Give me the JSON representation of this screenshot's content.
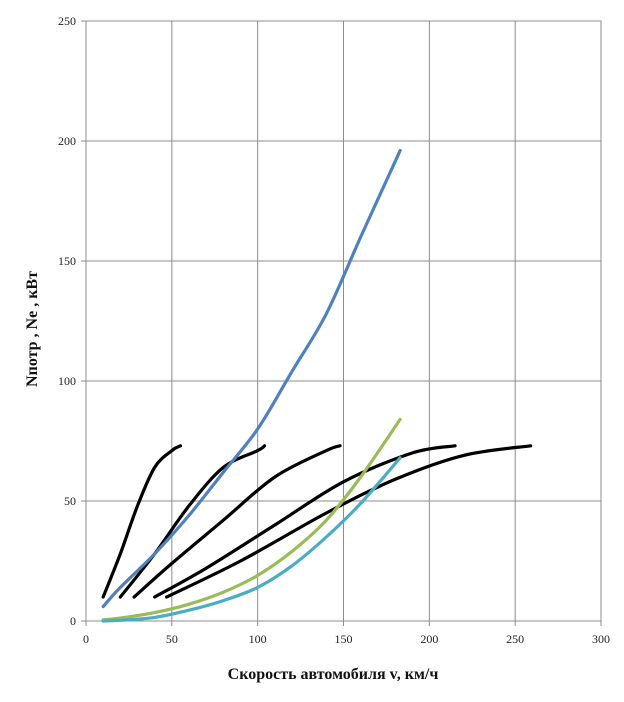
{
  "chart_data": {
    "type": "line",
    "title": "",
    "xlabel": "Скорость автомобиля v, км/ч",
    "ylabel": "Nпотр , Ne , кВт",
    "xlim": [
      0,
      300
    ],
    "ylim": [
      0,
      250
    ],
    "xticks": [
      0,
      50,
      100,
      150,
      200,
      250,
      300
    ],
    "yticks": [
      0,
      50,
      100,
      150,
      200,
      250
    ],
    "grid": true,
    "legend": "none",
    "series": [
      {
        "color": "#000000",
        "x": [
          10,
          20,
          30,
          40,
          50,
          55
        ],
        "y": [
          10,
          28,
          48,
          64,
          71,
          73
        ]
      },
      {
        "color": "#000000",
        "x": [
          20,
          40,
          60,
          80,
          100,
          104
        ],
        "y": [
          10,
          28,
          48,
          64,
          71,
          73
        ]
      },
      {
        "color": "#000000",
        "x": [
          28,
          50,
          80,
          110,
          140,
          148
        ],
        "y": [
          10,
          24,
          42,
          60,
          71,
          73
        ]
      },
      {
        "color": "#000000",
        "x": [
          40,
          70,
          110,
          150,
          190,
          215
        ],
        "y": [
          10,
          22,
          40,
          58,
          70,
          73
        ]
      },
      {
        "color": "#000000",
        "x": [
          47,
          90,
          140,
          180,
          220,
          259
        ],
        "y": [
          10,
          25,
          45,
          59,
          69,
          73
        ]
      },
      {
        "color": "#4F81BD",
        "x": [
          10,
          20,
          40,
          60,
          80,
          100,
          120,
          140,
          160,
          183
        ],
        "y": [
          6,
          14,
          28,
          44,
          62,
          80,
          104,
          128,
          160,
          196
        ]
      },
      {
        "color": "#9BBB59",
        "x": [
          10,
          20,
          40,
          60,
          80,
          100,
          120,
          140,
          160,
          183
        ],
        "y": [
          0.5,
          1.2,
          3.5,
          7,
          12,
          19,
          29,
          42,
          60,
          84
        ]
      },
      {
        "color": "#4BACC6",
        "x": [
          10,
          20,
          40,
          60,
          80,
          100,
          120,
          140,
          160,
          183
        ],
        "y": [
          0,
          0.3,
          1.5,
          4.5,
          8.5,
          14,
          23,
          35,
          49,
          68
        ]
      }
    ]
  }
}
